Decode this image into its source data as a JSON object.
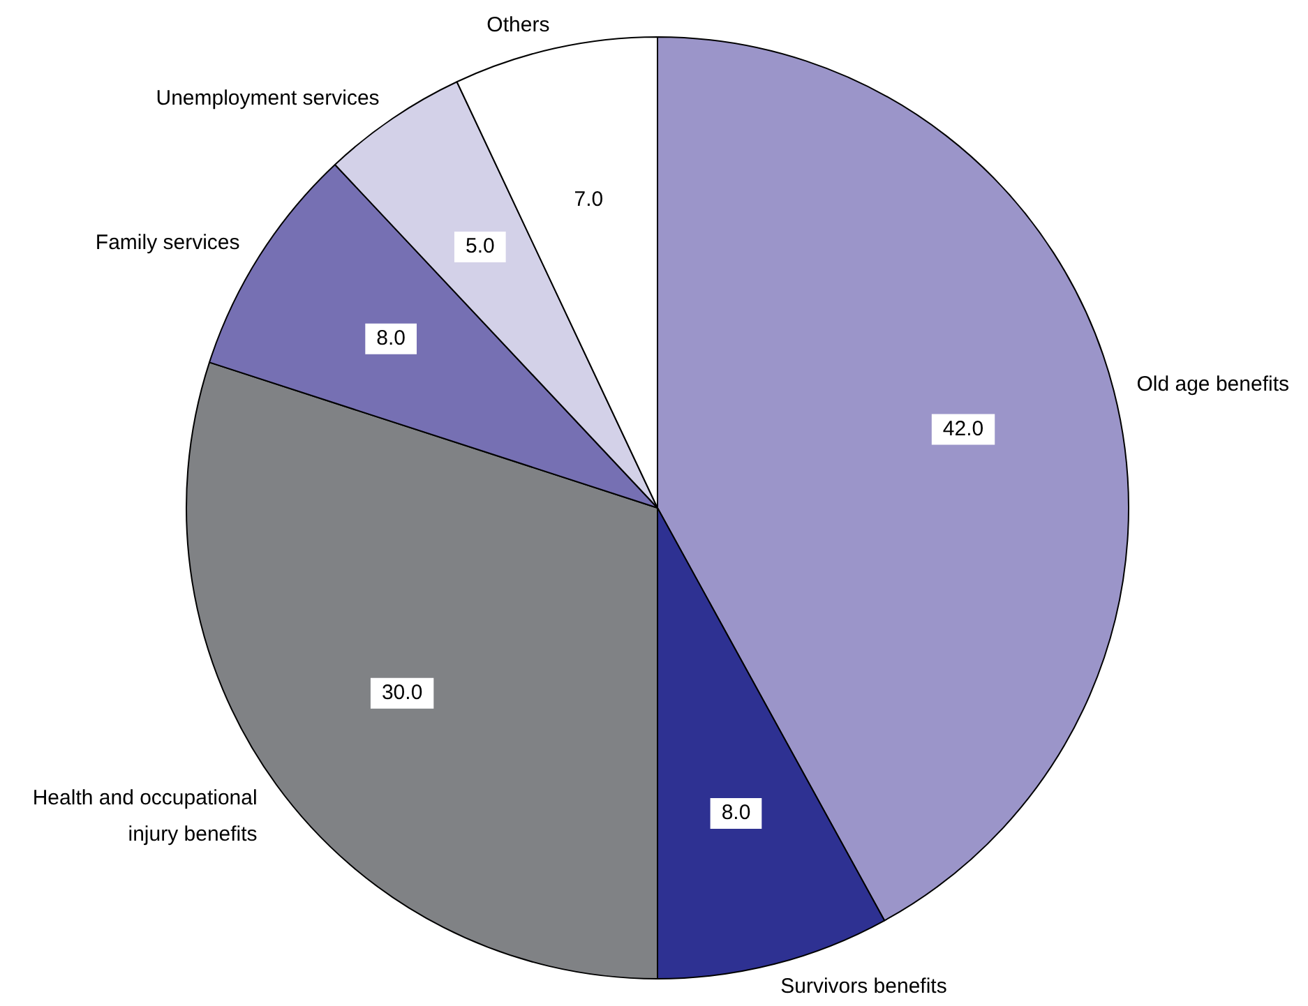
{
  "chart_data": {
    "type": "pie",
    "categories": [
      "Old age benefits",
      "Survivors benefits",
      "Health and occupational injury benefits",
      "Family services",
      "Unemployment services",
      "Others"
    ],
    "values": [
      42,
      8,
      30,
      8,
      5,
      7
    ],
    "value_labels": [
      "42.0",
      "8.0",
      "30.0",
      "8.0",
      "5.0",
      "7.0"
    ],
    "colors": [
      "#9b95c9",
      "#2e3192",
      "#808285",
      "#7670b3",
      "#d3d1e8",
      "#ffffff"
    ],
    "legend": false
  }
}
